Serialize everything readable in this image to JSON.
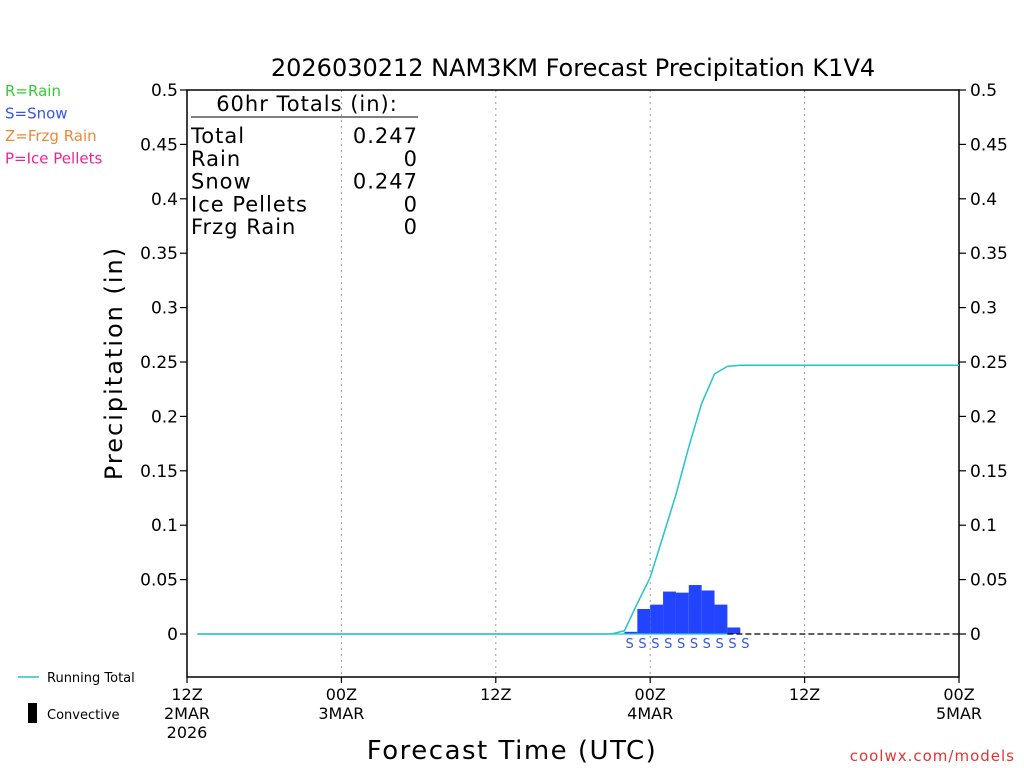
{
  "chart_data": {
    "type": "bar",
    "title": "2026030212 NAM3KM Forecast Precipitation K1V4",
    "ylabel": "Precipitation (in)",
    "xlabel": "Forecast Time (UTC)",
    "ylim": [
      -0.04,
      0.5
    ],
    "xlim_hours": [
      0,
      60
    ],
    "y_ticks": [
      0,
      0.05,
      0.1,
      0.15,
      0.2,
      0.25,
      0.3,
      0.35,
      0.4,
      0.45,
      0.5
    ],
    "y_tick_labels": [
      "0",
      "0.05",
      "0.1",
      "0.15",
      "0.2",
      "0.25",
      "0.3",
      "0.35",
      "0.4",
      "0.45",
      "0.5"
    ],
    "x_ticks": [
      {
        "hour": 0,
        "lines": [
          "12Z",
          "2MAR",
          "2026"
        ]
      },
      {
        "hour": 12,
        "lines": [
          "00Z",
          "3MAR"
        ]
      },
      {
        "hour": 24,
        "lines": [
          "12Z"
        ]
      },
      {
        "hour": 36,
        "lines": [
          "00Z",
          "4MAR"
        ]
      },
      {
        "hour": 48,
        "lines": [
          "12Z"
        ]
      },
      {
        "hour": 60,
        "lines": [
          "00Z",
          "5MAR"
        ]
      }
    ],
    "legend_ptype": [
      {
        "label": "R=Rain",
        "color": "#33cc33"
      },
      {
        "label": "S=Snow",
        "color": "#3355ee"
      },
      {
        "label": "Z=Frzg Rain",
        "color": "#ee8833"
      },
      {
        "label": "P=Ice Pellets",
        "color": "#ee2299"
      }
    ],
    "legend_bottom": [
      {
        "label": "Running Total",
        "color": "#22c5c5",
        "kind": "line"
      },
      {
        "label": "Convective",
        "color": "#000000",
        "kind": "bar"
      }
    ],
    "totals_box": {
      "heading": "60hr Totals (in):",
      "rows": [
        {
          "label": "Total",
          "value": "0.247"
        },
        {
          "label": "Rain",
          "value": "0"
        },
        {
          "label": "Snow",
          "value": "0.247"
        },
        {
          "label": "Ice Pellets",
          "value": "0"
        },
        {
          "label": "Frzg Rain",
          "value": "0"
        }
      ]
    },
    "series": [
      {
        "name": "Hourly Precipitation (Snow)",
        "color": "#2244ff",
        "bars": [
          {
            "hour": 34,
            "value": 0.002
          },
          {
            "hour": 35,
            "value": 0.023
          },
          {
            "hour": 36,
            "value": 0.027
          },
          {
            "hour": 37,
            "value": 0.039
          },
          {
            "hour": 38,
            "value": 0.038
          },
          {
            "hour": 39,
            "value": 0.045
          },
          {
            "hour": 40,
            "value": 0.04
          },
          {
            "hour": 41,
            "value": 0.027
          },
          {
            "hour": 42,
            "value": 0.006
          }
        ]
      },
      {
        "name": "Running Total",
        "color": "#22c5c5",
        "x": [
          0.8,
          33,
          34,
          35,
          36,
          37,
          38,
          39,
          40,
          41,
          42,
          43,
          44,
          45,
          48,
          52,
          56,
          60
        ],
        "y": [
          0,
          0,
          0.003,
          0.028,
          0.052,
          0.09,
          0.128,
          0.172,
          0.212,
          0.239,
          0.246,
          0.247,
          0.247,
          0.247,
          0.247,
          0.247,
          0.247,
          0.247
        ]
      }
    ],
    "ptype_markers": {
      "letter": "S",
      "hours": [
        34.4,
        35.4,
        36.4,
        37.4,
        38.4,
        39.4,
        40.4,
        41.4,
        42.4,
        43.4
      ]
    },
    "zero_line_dashed_from_hour": 42
  },
  "credit": "coolwx.com/models"
}
